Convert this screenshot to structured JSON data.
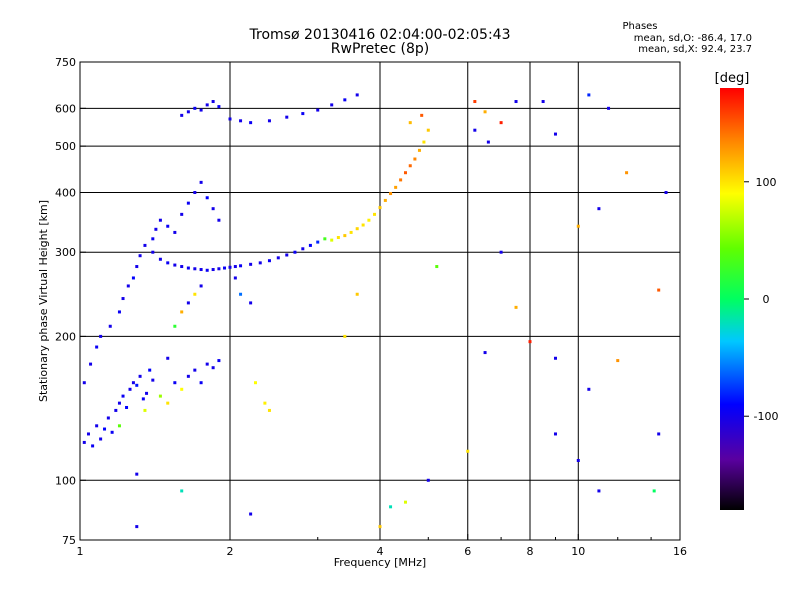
{
  "header": {
    "title_line1": "Tromsø 20130416 02:04:00-02:05:43",
    "title_line2": "RwPretec (8p)",
    "phases_title": "Phases",
    "phases_line1": "mean, sd,O: -86.4, 17.0",
    "phases_line2": "mean, sd,X:  92.4, 23.7"
  },
  "colorbar": {
    "label": "[deg]",
    "ticks": [
      {
        "label": "100",
        "value": 100
      },
      {
        "label": "0",
        "value": 0
      },
      {
        "label": "-100",
        "value": -100
      }
    ],
    "range": [
      -180,
      180
    ]
  },
  "chart_data": {
    "type": "scatter",
    "title": "Tromsø 20130416 02:04:00-02:05:43",
    "subtitle": "RwPretec (8p)",
    "xlabel": "Frequency [MHz]",
    "ylabel": "Stationary phase Virtual Height [km]",
    "xscale": "log",
    "yscale": "log",
    "xlim": [
      1,
      16
    ],
    "ylim": [
      75,
      750
    ],
    "xticks": [
      {
        "label": "1",
        "value": 1
      },
      {
        "label": "2",
        "value": 2
      },
      {
        "label": "4",
        "value": 4
      },
      {
        "label": "6",
        "value": 6
      },
      {
        "label": "8",
        "value": 8
      },
      {
        "label": "10",
        "value": 10
      },
      {
        "label": "16",
        "value": 16
      }
    ],
    "yticks": [
      {
        "label": "750",
        "value": 750
      },
      {
        "label": "600",
        "value": 600
      },
      {
        "label": "500",
        "value": 500
      },
      {
        "label": "400",
        "value": 400
      },
      {
        "label": "300",
        "value": 300
      },
      {
        "label": "200",
        "value": 200
      },
      {
        "label": "100",
        "value": 100
      },
      {
        "label": "75",
        "value": 75
      }
    ],
    "grid_x": [
      2,
      4,
      6,
      8,
      10
    ],
    "grid_y": [
      100,
      200,
      300,
      400,
      500,
      600
    ],
    "color_scale": "rainbow phase, -180 (black) to 180 (red) deg",
    "points": [
      [
        1.02,
        120,
        -100
      ],
      [
        1.04,
        125,
        -100
      ],
      [
        1.06,
        118,
        -95
      ],
      [
        1.08,
        130,
        -100
      ],
      [
        1.1,
        122,
        -100
      ],
      [
        1.12,
        128,
        -90
      ],
      [
        1.14,
        135,
        -100
      ],
      [
        1.16,
        126,
        -95
      ],
      [
        1.18,
        140,
        -100
      ],
      [
        1.2,
        145,
        -100
      ],
      [
        1.22,
        150,
        -95
      ],
      [
        1.24,
        142,
        -90
      ],
      [
        1.26,
        155,
        -100
      ],
      [
        1.28,
        160,
        -100
      ],
      [
        1.3,
        158,
        -85
      ],
      [
        1.32,
        165,
        -100
      ],
      [
        1.34,
        148,
        -95
      ],
      [
        1.36,
        152,
        -100
      ],
      [
        1.38,
        170,
        -90
      ],
      [
        1.4,
        162,
        -100
      ],
      [
        1.45,
        150,
        60
      ],
      [
        1.5,
        145,
        100
      ],
      [
        1.55,
        160,
        -95
      ],
      [
        1.6,
        155,
        90
      ],
      [
        1.65,
        165,
        -100
      ],
      [
        1.7,
        170,
        -100
      ],
      [
        1.75,
        160,
        -95
      ],
      [
        1.8,
        175,
        -100
      ],
      [
        1.85,
        172,
        -100
      ],
      [
        1.9,
        178,
        -95
      ],
      [
        1.02,
        160,
        -100
      ],
      [
        1.05,
        175,
        -100
      ],
      [
        1.08,
        190,
        -95
      ],
      [
        1.1,
        200,
        -100
      ],
      [
        1.15,
        210,
        -100
      ],
      [
        1.2,
        225,
        -95
      ],
      [
        1.22,
        240,
        -100
      ],
      [
        1.25,
        255,
        -100
      ],
      [
        1.28,
        265,
        -90
      ],
      [
        1.3,
        280,
        -100
      ],
      [
        1.32,
        295,
        -100
      ],
      [
        1.35,
        310,
        -100
      ],
      [
        1.4,
        320,
        -95
      ],
      [
        1.42,
        335,
        -100
      ],
      [
        1.45,
        350,
        -100
      ],
      [
        1.5,
        340,
        -95
      ],
      [
        1.55,
        330,
        -100
      ],
      [
        1.6,
        360,
        -100
      ],
      [
        1.65,
        380,
        -95
      ],
      [
        1.7,
        400,
        -100
      ],
      [
        1.75,
        420,
        -100
      ],
      [
        1.8,
        390,
        -90
      ],
      [
        1.85,
        370,
        -100
      ],
      [
        1.9,
        350,
        -100
      ],
      [
        1.4,
        300,
        -100
      ],
      [
        1.45,
        290,
        -100
      ],
      [
        1.5,
        285,
        -95
      ],
      [
        1.55,
        282,
        -100
      ],
      [
        1.6,
        280,
        -100
      ],
      [
        1.65,
        278,
        -95
      ],
      [
        1.7,
        277,
        -100
      ],
      [
        1.75,
        276,
        -100
      ],
      [
        1.8,
        275,
        -95
      ],
      [
        1.85,
        276,
        -100
      ],
      [
        1.9,
        277,
        -100
      ],
      [
        1.95,
        278,
        -95
      ],
      [
        2.0,
        279,
        -100
      ],
      [
        2.05,
        280,
        -100
      ],
      [
        2.1,
        281,
        -95
      ],
      [
        2.2,
        283,
        -100
      ],
      [
        2.3,
        285,
        -100
      ],
      [
        2.4,
        288,
        -95
      ],
      [
        2.5,
        292,
        -100
      ],
      [
        2.6,
        296,
        -100
      ],
      [
        2.7,
        300,
        -95
      ],
      [
        2.8,
        305,
        -100
      ],
      [
        2.9,
        310,
        -90
      ],
      [
        3.0,
        315,
        -80
      ],
      [
        3.1,
        320,
        30
      ],
      [
        3.2,
        318,
        80
      ],
      [
        3.3,
        322,
        100
      ],
      [
        3.4,
        325,
        110
      ],
      [
        3.5,
        330,
        100
      ],
      [
        3.6,
        336,
        105
      ],
      [
        3.7,
        342,
        100
      ],
      [
        3.8,
        350,
        95
      ],
      [
        3.9,
        360,
        100
      ],
      [
        4.0,
        372,
        110
      ],
      [
        4.1,
        385,
        120
      ],
      [
        4.2,
        398,
        130
      ],
      [
        4.3,
        410,
        125
      ],
      [
        4.4,
        425,
        140
      ],
      [
        4.5,
        440,
        150
      ],
      [
        4.6,
        455,
        145
      ],
      [
        4.7,
        470,
        135
      ],
      [
        4.8,
        490,
        120
      ],
      [
        4.9,
        510,
        100
      ],
      [
        5.0,
        540,
        110
      ],
      [
        4.85,
        580,
        150
      ],
      [
        4.6,
        560,
        115
      ],
      [
        1.6,
        580,
        -100
      ],
      [
        1.65,
        590,
        -100
      ],
      [
        1.7,
        600,
        -95
      ],
      [
        1.75,
        595,
        -100
      ],
      [
        1.8,
        610,
        -100
      ],
      [
        1.85,
        620,
        -100
      ],
      [
        1.9,
        605,
        -95
      ],
      [
        2.0,
        570,
        -100
      ],
      [
        2.1,
        565,
        -100
      ],
      [
        2.2,
        560,
        -95
      ],
      [
        2.4,
        565,
        -100
      ],
      [
        2.6,
        575,
        -100
      ],
      [
        2.8,
        585,
        -95
      ],
      [
        3.0,
        595,
        -100
      ],
      [
        3.2,
        610,
        -100
      ],
      [
        3.4,
        625,
        -95
      ],
      [
        3.6,
        640,
        -100
      ],
      [
        2.4,
        140,
        100
      ],
      [
        2.35,
        145,
        95
      ],
      [
        2.25,
        160,
        90
      ],
      [
        3.4,
        200,
        100
      ],
      [
        3.6,
        245,
        110
      ],
      [
        5.2,
        280,
        40
      ],
      [
        6.2,
        620,
        160
      ],
      [
        6.5,
        590,
        120
      ],
      [
        7.0,
        560,
        170
      ],
      [
        7.5,
        620,
        -100
      ],
      [
        8.5,
        620,
        -100
      ],
      [
        9.0,
        530,
        -100
      ],
      [
        10.5,
        640,
        -80
      ],
      [
        11.5,
        600,
        -100
      ],
      [
        12.5,
        440,
        130
      ],
      [
        15.0,
        400,
        -100
      ],
      [
        14.5,
        250,
        150
      ],
      [
        11.0,
        370,
        -100
      ],
      [
        10.0,
        340,
        120
      ],
      [
        7.0,
        300,
        -100
      ],
      [
        6.2,
        540,
        -100
      ],
      [
        6.6,
        510,
        -100
      ],
      [
        7.5,
        230,
        120
      ],
      [
        9.0,
        180,
        -100
      ],
      [
        10.5,
        155,
        -100
      ],
      [
        12.0,
        178,
        130
      ],
      [
        6.5,
        185,
        -100
      ],
      [
        6.0,
        115,
        100
      ],
      [
        5.0,
        100,
        -100
      ],
      [
        4.5,
        90,
        80
      ],
      [
        4.2,
        88,
        -20
      ],
      [
        4.0,
        80,
        110
      ],
      [
        2.2,
        85,
        -100
      ],
      [
        1.3,
        80,
        -100
      ],
      [
        1.6,
        95,
        -20
      ],
      [
        1.3,
        103,
        -100
      ],
      [
        8.0,
        195,
        170
      ],
      [
        9.0,
        125,
        -100
      ],
      [
        10.0,
        110,
        -100
      ],
      [
        11.0,
        95,
        -100
      ],
      [
        14.5,
        125,
        -100
      ],
      [
        14.2,
        95,
        0
      ],
      [
        1.2,
        130,
        40
      ],
      [
        1.35,
        140,
        80
      ],
      [
        1.5,
        180,
        -100
      ],
      [
        1.55,
        210,
        20
      ],
      [
        1.6,
        225,
        120
      ],
      [
        1.65,
        235,
        -100
      ],
      [
        1.7,
        245,
        100
      ],
      [
        1.75,
        255,
        -100
      ],
      [
        2.05,
        265,
        -100
      ],
      [
        2.1,
        245,
        -60
      ],
      [
        2.2,
        235,
        -100
      ]
    ]
  }
}
